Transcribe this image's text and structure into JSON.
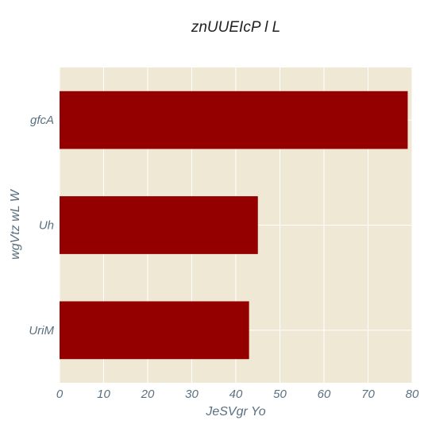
{
  "chart_data": {
    "type": "bar",
    "orientation": "horizontal",
    "title": "znUUEIcP  l L",
    "xlabel": "JeSVgr Yo",
    "ylabel": "wgVtz wL W",
    "categories": [
      "gfcA",
      "Uh",
      "UriM"
    ],
    "values": [
      79,
      45,
      43
    ],
    "xlim": [
      0,
      80
    ],
    "xticks": [
      0,
      10,
      20,
      30,
      40,
      50,
      60,
      70,
      80
    ],
    "grid": true,
    "colors": {
      "bar": "#940000",
      "plot_background": "#efe8d5",
      "grid": "#ffffff"
    }
  }
}
